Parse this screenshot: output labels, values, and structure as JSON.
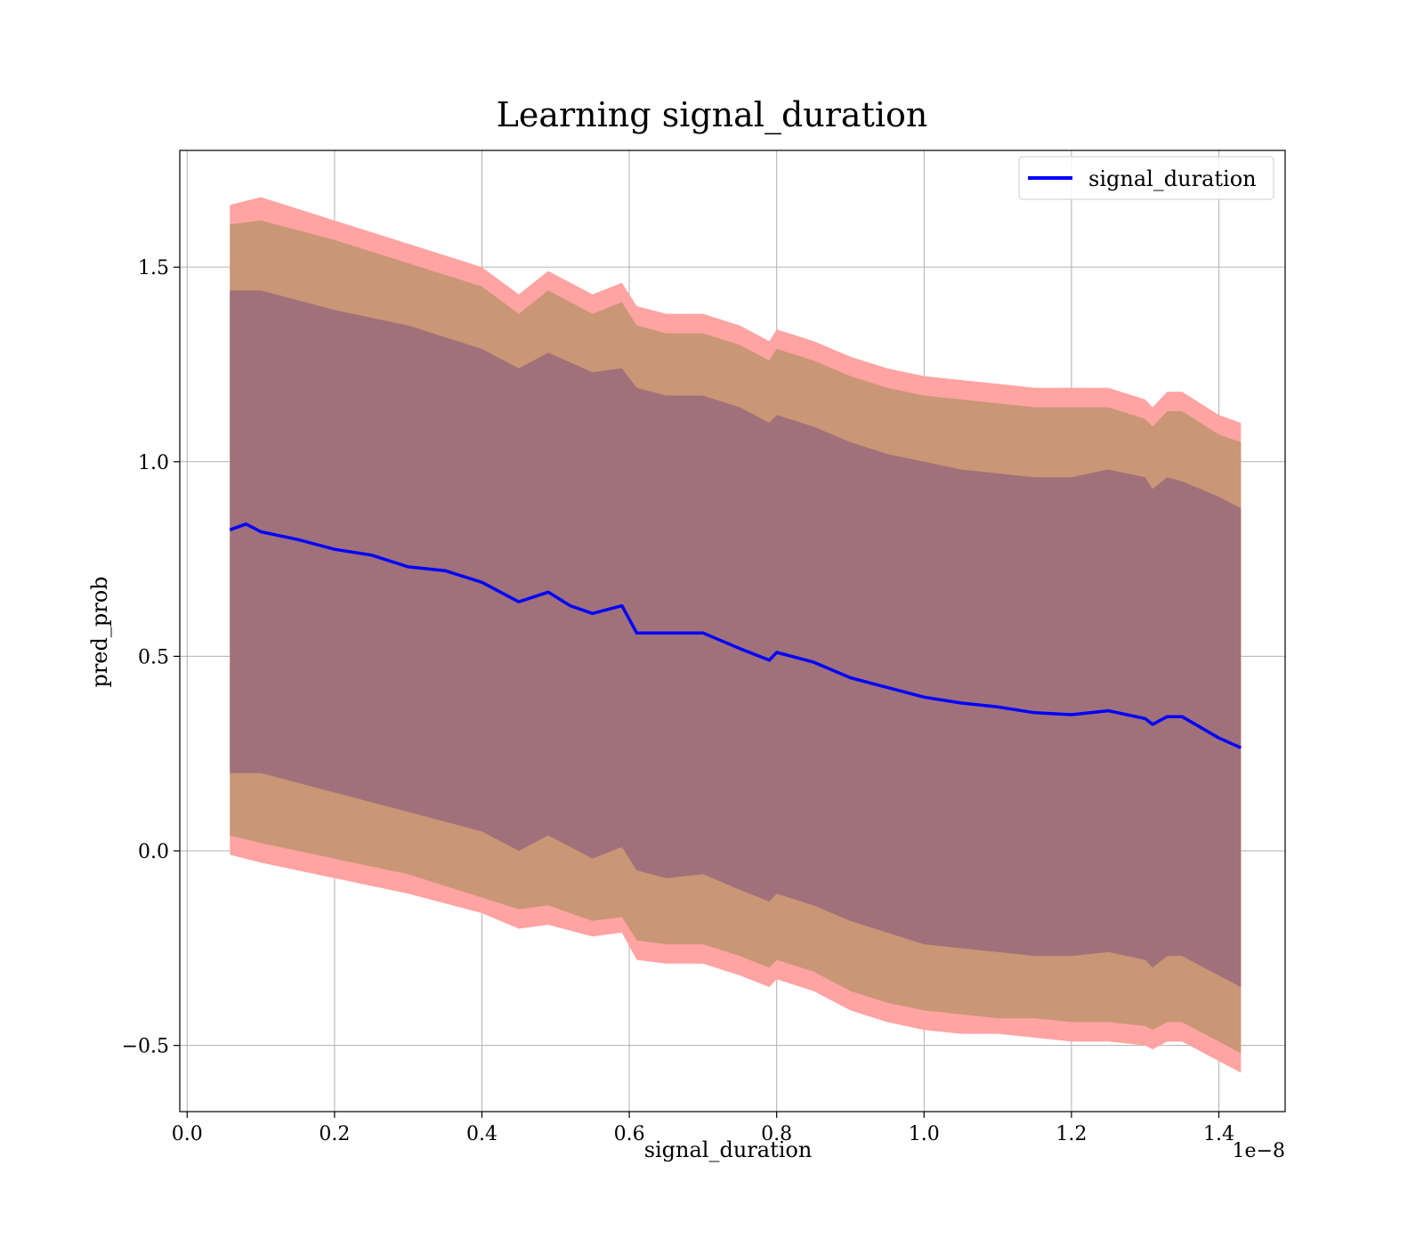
{
  "chart_data": {
    "type": "line",
    "title": "Learning signal_duration",
    "xlabel": "signal_duration",
    "ylabel": "pred_prob",
    "x_offset_label": "1e−8",
    "xlim": [
      -0.01,
      1.49
    ],
    "ylim": [
      -0.67,
      1.8
    ],
    "x_ticks": [
      0.0,
      0.2,
      0.4,
      0.6,
      0.8,
      1.0,
      1.2,
      1.4
    ],
    "x_tick_labels": [
      "0.0",
      "0.2",
      "0.4",
      "0.6",
      "0.8",
      "1.0",
      "1.2",
      "1.4"
    ],
    "y_ticks": [
      -0.5,
      0.0,
      0.5,
      1.0,
      1.5
    ],
    "y_tick_labels": [
      "−0.5",
      "0.0",
      "0.5",
      "1.0",
      "1.5"
    ],
    "grid": true,
    "legend_position": "top-right",
    "colors": {
      "line": "#0000ff",
      "band_outer": "#ffa3a3",
      "band_middle": "#c99676",
      "band_inner": "#a0717a",
      "grid": "#b0b0b0"
    },
    "series": [
      {
        "name": "signal_duration",
        "x": [
          0.058,
          0.08,
          0.1,
          0.15,
          0.2,
          0.25,
          0.3,
          0.35,
          0.4,
          0.45,
          0.49,
          0.52,
          0.55,
          0.59,
          0.61,
          0.65,
          0.7,
          0.75,
          0.79,
          0.8,
          0.85,
          0.9,
          0.95,
          1.0,
          1.05,
          1.1,
          1.15,
          1.2,
          1.25,
          1.3,
          1.31,
          1.33,
          1.35,
          1.4,
          1.43
        ],
        "y": [
          0.825,
          0.84,
          0.82,
          0.8,
          0.775,
          0.76,
          0.73,
          0.72,
          0.69,
          0.64,
          0.665,
          0.63,
          0.61,
          0.63,
          0.56,
          0.56,
          0.56,
          0.52,
          0.49,
          0.51,
          0.485,
          0.445,
          0.42,
          0.395,
          0.38,
          0.37,
          0.355,
          0.35,
          0.36,
          0.34,
          0.325,
          0.345,
          0.345,
          0.29,
          0.265
        ]
      }
    ],
    "bands": [
      {
        "level": "outer",
        "x": [
          0.058,
          0.1,
          0.2,
          0.3,
          0.4,
          0.45,
          0.49,
          0.55,
          0.59,
          0.61,
          0.65,
          0.7,
          0.75,
          0.79,
          0.8,
          0.85,
          0.9,
          0.95,
          1.0,
          1.05,
          1.1,
          1.15,
          1.2,
          1.25,
          1.3,
          1.31,
          1.33,
          1.35,
          1.4,
          1.43
        ],
        "lower": [
          -0.01,
          -0.03,
          -0.07,
          -0.11,
          -0.16,
          -0.2,
          -0.19,
          -0.22,
          -0.21,
          -0.28,
          -0.29,
          -0.29,
          -0.32,
          -0.35,
          -0.33,
          -0.36,
          -0.41,
          -0.44,
          -0.46,
          -0.47,
          -0.47,
          -0.48,
          -0.49,
          -0.49,
          -0.5,
          -0.51,
          -0.49,
          -0.49,
          -0.54,
          -0.57
        ],
        "upper": [
          1.66,
          1.68,
          1.62,
          1.56,
          1.5,
          1.43,
          1.49,
          1.43,
          1.46,
          1.4,
          1.38,
          1.38,
          1.35,
          1.31,
          1.34,
          1.31,
          1.27,
          1.24,
          1.22,
          1.21,
          1.2,
          1.19,
          1.19,
          1.19,
          1.16,
          1.14,
          1.18,
          1.18,
          1.12,
          1.1
        ]
      },
      {
        "level": "middle",
        "x": [
          0.058,
          0.1,
          0.2,
          0.3,
          0.4,
          0.45,
          0.49,
          0.55,
          0.59,
          0.61,
          0.65,
          0.7,
          0.75,
          0.79,
          0.8,
          0.85,
          0.9,
          0.95,
          1.0,
          1.05,
          1.1,
          1.15,
          1.2,
          1.25,
          1.3,
          1.31,
          1.33,
          1.35,
          1.4,
          1.43
        ],
        "lower": [
          0.04,
          0.02,
          -0.02,
          -0.06,
          -0.12,
          -0.15,
          -0.14,
          -0.18,
          -0.17,
          -0.23,
          -0.24,
          -0.24,
          -0.27,
          -0.3,
          -0.28,
          -0.31,
          -0.36,
          -0.39,
          -0.41,
          -0.42,
          -0.43,
          -0.43,
          -0.44,
          -0.44,
          -0.45,
          -0.46,
          -0.44,
          -0.44,
          -0.49,
          -0.52
        ],
        "upper": [
          1.61,
          1.62,
          1.57,
          1.51,
          1.45,
          1.38,
          1.44,
          1.38,
          1.41,
          1.35,
          1.33,
          1.33,
          1.3,
          1.26,
          1.29,
          1.26,
          1.22,
          1.19,
          1.17,
          1.16,
          1.15,
          1.14,
          1.14,
          1.14,
          1.11,
          1.09,
          1.13,
          1.13,
          1.07,
          1.05
        ]
      },
      {
        "level": "inner",
        "x": [
          0.058,
          0.1,
          0.2,
          0.3,
          0.4,
          0.45,
          0.49,
          0.55,
          0.59,
          0.61,
          0.65,
          0.7,
          0.75,
          0.79,
          0.8,
          0.85,
          0.9,
          0.95,
          1.0,
          1.05,
          1.1,
          1.15,
          1.2,
          1.25,
          1.3,
          1.31,
          1.33,
          1.35,
          1.4,
          1.43
        ],
        "lower": [
          0.2,
          0.2,
          0.15,
          0.1,
          0.05,
          0.0,
          0.04,
          -0.02,
          0.01,
          -0.05,
          -0.07,
          -0.06,
          -0.1,
          -0.13,
          -0.11,
          -0.14,
          -0.18,
          -0.21,
          -0.24,
          -0.25,
          -0.26,
          -0.27,
          -0.27,
          -0.26,
          -0.28,
          -0.3,
          -0.27,
          -0.27,
          -0.32,
          -0.35
        ],
        "upper": [
          1.44,
          1.44,
          1.39,
          1.35,
          1.29,
          1.24,
          1.28,
          1.23,
          1.24,
          1.19,
          1.17,
          1.17,
          1.14,
          1.1,
          1.12,
          1.09,
          1.05,
          1.02,
          1.0,
          0.98,
          0.97,
          0.96,
          0.96,
          0.98,
          0.96,
          0.93,
          0.96,
          0.95,
          0.91,
          0.88
        ]
      }
    ]
  }
}
